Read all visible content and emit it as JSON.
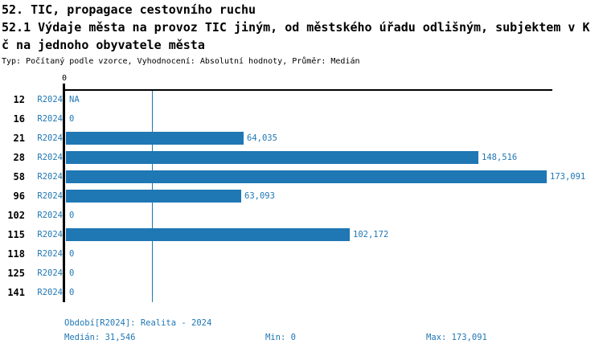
{
  "header": {
    "line1": "52. TIC, propagace cestovního ruchu",
    "line2": "52.1 Výdaje města na provoz TIC jiným, od městského úřadu odlišným, subjektem v K",
    "line3": "č na jednoho obyvatele města",
    "meta": "Typ: Počítaný podle vzorce, Vyhodnocení: Absolutní hodnoty, Průměr: Medián"
  },
  "chart_data": {
    "type": "bar",
    "orientation": "horizontal",
    "title": "52.1 Výdaje města na provoz TIC jiným, od městského úřadu odlišným, subjektem v Kč na jednoho obyvatele města",
    "axis_tick_label": "0",
    "axis_min": 0,
    "axis_max": 173091,
    "median_value": 31546,
    "grid": "median-line-only",
    "categories": [
      "12",
      "16",
      "21",
      "28",
      "58",
      "96",
      "102",
      "115",
      "118",
      "125",
      "141"
    ],
    "series_period": "R2024",
    "rows": [
      {
        "category": "12",
        "period": "R2024",
        "value": null,
        "display": "NA"
      },
      {
        "category": "16",
        "period": "R2024",
        "value": 0,
        "display": "0"
      },
      {
        "category": "21",
        "period": "R2024",
        "value": 64035,
        "display": "64,035"
      },
      {
        "category": "28",
        "period": "R2024",
        "value": 148516,
        "display": "148,516"
      },
      {
        "category": "58",
        "period": "R2024",
        "value": 173091,
        "display": "173,091"
      },
      {
        "category": "96",
        "period": "R2024",
        "value": 63093,
        "display": "63,093"
      },
      {
        "category": "102",
        "period": "R2024",
        "value": 0,
        "display": "0"
      },
      {
        "category": "115",
        "period": "R2024",
        "value": 102172,
        "display": "102,172"
      },
      {
        "category": "118",
        "period": "R2024",
        "value": 0,
        "display": "0"
      },
      {
        "category": "125",
        "period": "R2024",
        "value": 0,
        "display": "0"
      },
      {
        "category": "141",
        "period": "R2024",
        "value": 0,
        "display": "0"
      }
    ]
  },
  "footer": {
    "period_line": "Období[R2024]: Realita - 2024",
    "median_label": "Medián: 31,546",
    "min_label": "Min: 0",
    "max_label": "Max: 173,091"
  },
  "colors": {
    "accent": "#1f77b4",
    "text": "#000000",
    "background": "#ffffff"
  }
}
